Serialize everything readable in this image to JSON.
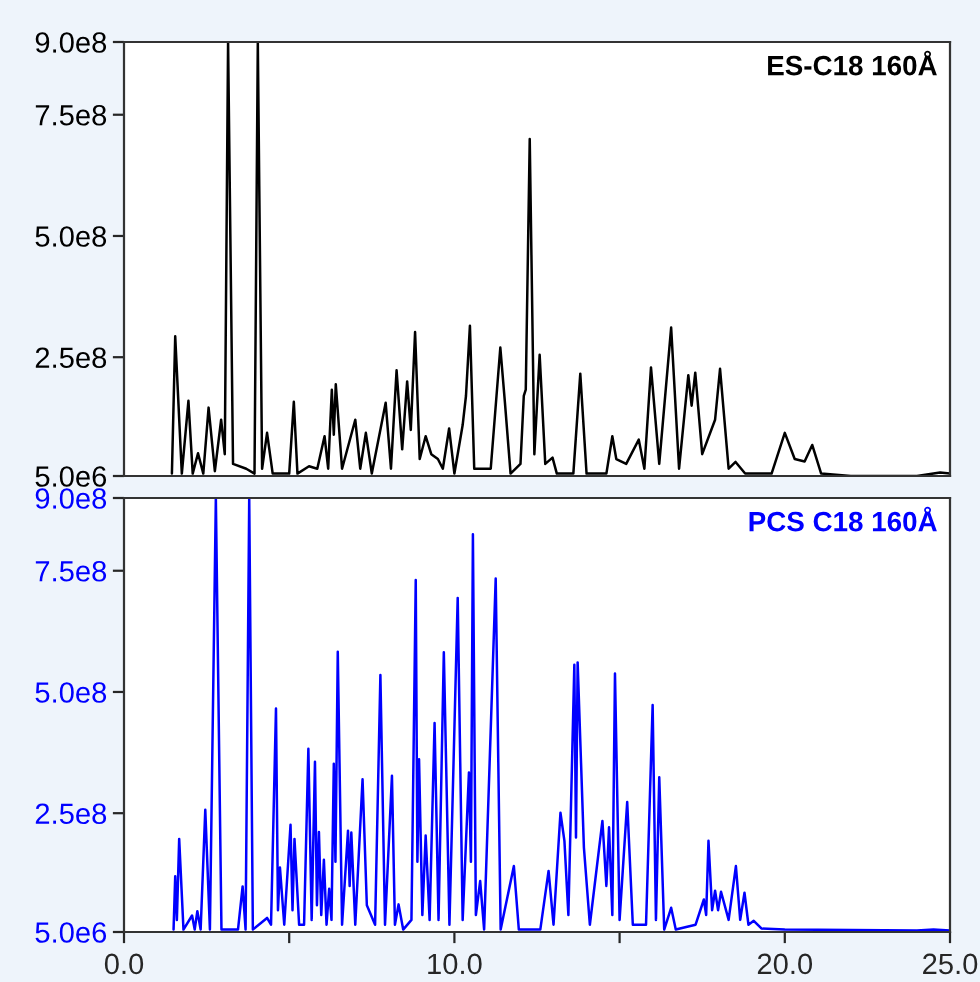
{
  "chart_data": [
    {
      "type": "line",
      "xlim": [
        0,
        25
      ],
      "ylim": [
        5000000.0,
        900000000.0
      ],
      "yticks": [
        {
          "value": 5000000.0,
          "label": "5.0e6"
        },
        {
          "value": 250000000.0,
          "label": "2.5e8"
        },
        {
          "value": 500000000.0,
          "label": "5.0e8"
        },
        {
          "value": 750000000.0,
          "label": "7.5e8"
        },
        {
          "value": 900000000.0,
          "label": "9.0e8"
        }
      ],
      "tick_labels": "y",
      "grid": false,
      "legend": false,
      "series": [
        {
          "name": "ES-C18 160Å",
          "color": "#000000",
          "x": [
            1.45,
            1.55,
            1.75,
            1.95,
            2.08,
            2.24,
            2.4,
            2.56,
            2.75,
            2.94,
            3.05,
            3.15,
            3.3,
            3.7,
            3.95,
            4.05,
            4.18,
            4.33,
            4.5,
            5.0,
            5.14,
            5.25,
            5.6,
            5.85,
            6.07,
            6.18,
            6.29,
            6.35,
            6.41,
            6.6,
            7.0,
            7.15,
            7.32,
            7.5,
            7.92,
            8.08,
            8.25,
            8.42,
            8.57,
            8.68,
            8.81,
            8.95,
            9.13,
            9.3,
            9.5,
            9.65,
            9.84,
            10.0,
            10.25,
            10.35,
            10.47,
            10.6,
            11.1,
            11.39,
            11.53,
            11.7,
            12.0,
            12.1,
            12.16,
            12.28,
            12.42,
            12.58,
            12.75,
            12.97,
            13.1,
            13.6,
            13.81,
            14.0,
            14.6,
            14.78,
            14.9,
            15.2,
            15.58,
            15.75,
            15.95,
            16.2,
            16.56,
            16.8,
            17.08,
            17.18,
            17.29,
            17.5,
            17.89,
            18.04,
            18.3,
            18.51,
            18.8,
            19.6,
            20.0,
            20.3,
            20.6,
            20.83,
            21.1,
            22.0,
            24.0,
            24.7,
            25.0
          ],
          "values": [
            10000000.0,
            293000000.0,
            10000000.0,
            160000000.0,
            10000000.0,
            52000000.0,
            10000000.0,
            146000000.0,
            15000000.0,
            121000000.0,
            50000000.0,
            900000000.0,
            30000000.0,
            20000000.0,
            10000000.0,
            900000000.0,
            20000000.0,
            94000000.0,
            10000000.0,
            10000000.0,
            158000000.0,
            10000000.0,
            25000000.0,
            20000000.0,
            87000000.0,
            20000000.0,
            183000000.0,
            90000000.0,
            194000000.0,
            20000000.0,
            121000000.0,
            20000000.0,
            94000000.0,
            10000000.0,
            156000000.0,
            20000000.0,
            223000000.0,
            60000000.0,
            200000000.0,
            100000000.0,
            302000000.0,
            40000000.0,
            87000000.0,
            50000000.0,
            40000000.0,
            20000000.0,
            103000000.0,
            10000000.0,
            110000000.0,
            170000000.0,
            315000000.0,
            20000000.0,
            20000000.0,
            270000000.0,
            156000000.0,
            10000000.0,
            30000000.0,
            170000000.0,
            183000000.0,
            700000000.0,
            50000000.0,
            255000000.0,
            30000000.0,
            43000000.0,
            10000000.0,
            10000000.0,
            216000000.0,
            10000000.0,
            10000000.0,
            87000000.0,
            40000000.0,
            30000000.0,
            80000000.0,
            20000000.0,
            229000000.0,
            30000000.0,
            311000000.0,
            20000000.0,
            213000000.0,
            150000000.0,
            218000000.0,
            50000000.0,
            121000000.0,
            226000000.0,
            20000000.0,
            34000000.0,
            10000000.0,
            10000000.0,
            94000000.0,
            40000000.0,
            35000000.0,
            69000000.0,
            10000000.0,
            5000000.0,
            5000000.0,
            12000000.0,
            10000000.0
          ]
        }
      ]
    },
    {
      "type": "line",
      "xlim": [
        0,
        25
      ],
      "xticks": [
        {
          "value": 0,
          "label": "0.0"
        },
        {
          "value": 5,
          "label": null
        },
        {
          "value": 10,
          "label": "10.0"
        },
        {
          "value": 15,
          "label": null
        },
        {
          "value": 20,
          "label": "20.0"
        },
        {
          "value": 25,
          "label": "25.0"
        }
      ],
      "ylim": [
        5000000.0,
        900000000.0
      ],
      "yticks": [
        {
          "value": 5000000.0,
          "label": "5.0e6"
        },
        {
          "value": 250000000.0,
          "label": "2.5e8"
        },
        {
          "value": 500000000.0,
          "label": "5.0e8"
        },
        {
          "value": 750000000.0,
          "label": "7.5e8"
        },
        {
          "value": 900000000.0,
          "label": "9.0e8"
        }
      ],
      "grid": false,
      "legend": false,
      "series": [
        {
          "name": "PCS C18 160Å",
          "color": "#0000ff",
          "x": [
            1.5,
            1.55,
            1.6,
            1.67,
            1.8,
            2.06,
            2.14,
            2.22,
            2.32,
            2.46,
            2.6,
            2.78,
            2.95,
            3.45,
            3.59,
            3.68,
            3.79,
            3.9,
            4.33,
            4.45,
            4.6,
            4.66,
            4.72,
            4.85,
            5.04,
            5.1,
            5.16,
            5.3,
            5.45,
            5.58,
            5.68,
            5.78,
            5.84,
            5.9,
            5.97,
            6.05,
            6.13,
            6.21,
            6.28,
            6.35,
            6.4,
            6.47,
            6.6,
            6.78,
            6.83,
            6.88,
            7.0,
            7.22,
            7.35,
            7.6,
            7.76,
            7.9,
            8.11,
            8.2,
            8.31,
            8.45,
            8.7,
            8.83,
            8.88,
            8.93,
            9.03,
            9.13,
            9.25,
            9.4,
            9.52,
            9.68,
            9.85,
            10.1,
            10.25,
            10.44,
            10.5,
            10.56,
            10.65,
            10.78,
            10.9,
            11.25,
            11.4,
            11.8,
            11.95,
            12.6,
            12.85,
            13.0,
            13.21,
            13.33,
            13.45,
            13.63,
            13.68,
            13.73,
            13.92,
            14.1,
            14.48,
            14.6,
            14.68,
            14.78,
            14.86,
            15.0,
            15.23,
            15.4,
            15.8,
            16.0,
            16.1,
            16.2,
            16.35,
            16.56,
            16.7,
            17.3,
            17.55,
            17.62,
            17.69,
            17.8,
            17.89,
            17.98,
            18.07,
            18.3,
            18.52,
            18.65,
            18.78,
            18.9,
            19.06,
            19.3,
            20.0,
            24.0,
            24.5,
            25.0
          ],
          "values": [
            10000000.0,
            120000000.0,
            30000000.0,
            197000000.0,
            10000000.0,
            39000000.0,
            10000000.0,
            48000000.0,
            10000000.0,
            257000000.0,
            10000000.0,
            900000000.0,
            10000000.0,
            10000000.0,
            99000000.0,
            10000000.0,
            900000000.0,
            10000000.0,
            34000000.0,
            20000000.0,
            466000000.0,
            50000000.0,
            138000000.0,
            20000000.0,
            226000000.0,
            50000000.0,
            197000000.0,
            20000000.0,
            20000000.0,
            383000000.0,
            30000000.0,
            356000000.0,
            60000000.0,
            211000000.0,
            40000000.0,
            154000000.0,
            20000000.0,
            94000000.0,
            30000000.0,
            352000000.0,
            150000000.0,
            583000000.0,
            20000000.0,
            214000000.0,
            100000000.0,
            210000000.0,
            20000000.0,
            320000000.0,
            60000000.0,
            20000000.0,
            535000000.0,
            20000000.0,
            327000000.0,
            20000000.0,
            62000000.0,
            10000000.0,
            30000000.0,
            731000000.0,
            150000000.0,
            361000000.0,
            40000000.0,
            204000000.0,
            30000000.0,
            436000000.0,
            30000000.0,
            582000000.0,
            20000000.0,
            694000000.0,
            30000000.0,
            334000000.0,
            150000000.0,
            825000000.0,
            40000000.0,
            110000000.0,
            10000000.0,
            734000000.0,
            10000000.0,
            141000000.0,
            10000000.0,
            10000000.0,
            131000000.0,
            20000000.0,
            251000000.0,
            193000000.0,
            40000000.0,
            556000000.0,
            200000000.0,
            561000000.0,
            179000000.0,
            20000000.0,
            234000000.0,
            100000000.0,
            221000000.0,
            40000000.0,
            538000000.0,
            30000000.0,
            273000000.0,
            20000000.0,
            20000000.0,
            473000000.0,
            30000000.0,
            324000000.0,
            10000000.0,
            55000000.0,
            10000000.0,
            20000000.0,
            72000000.0,
            40000000.0,
            193000000.0,
            50000000.0,
            90000000.0,
            50000000.0,
            88000000.0,
            30000000.0,
            141000000.0,
            30000000.0,
            86000000.0,
            20000000.0,
            28000000.0,
            12000000.0,
            10000000.0,
            8000000.0,
            10000000.0,
            8000000.0
          ]
        }
      ]
    }
  ]
}
